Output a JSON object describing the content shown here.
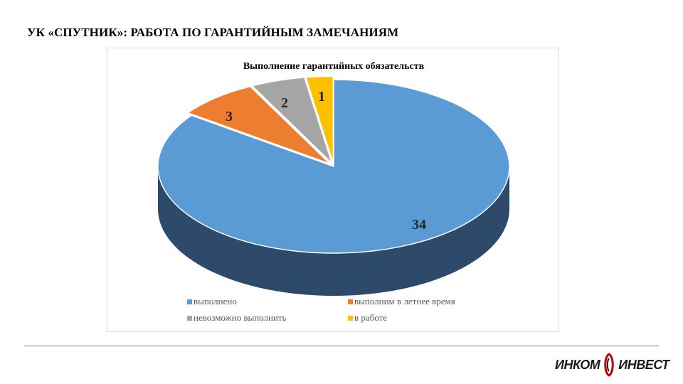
{
  "slide": {
    "title": "УК «СПУТНИК»: РАБОТА ПО ГАРАНТИЙНЫМ ЗАМЕЧАНИЯМ"
  },
  "chart_data": {
    "type": "pie",
    "style": "3d",
    "title": "Выполнение гарантийных обязательств",
    "legend_position": "bottom",
    "series": [
      {
        "labels": [
          "выполнено",
          "выполним в летнее время",
          "невозможно выполнить",
          "в работе"
        ],
        "values": [
          34,
          3,
          2,
          1
        ],
        "colors": [
          "#5b9bd5",
          "#ed7d31",
          "#a5a5a5",
          "#ffc000"
        ],
        "side_colors": [
          "#2e4a6b",
          "#8c4a1d",
          "#6b6b6b",
          "#997400"
        ]
      }
    ]
  },
  "logo": {
    "left": "ИНКОМ",
    "right": "ИНВЕСТ",
    "mark_color": "#c00000"
  }
}
